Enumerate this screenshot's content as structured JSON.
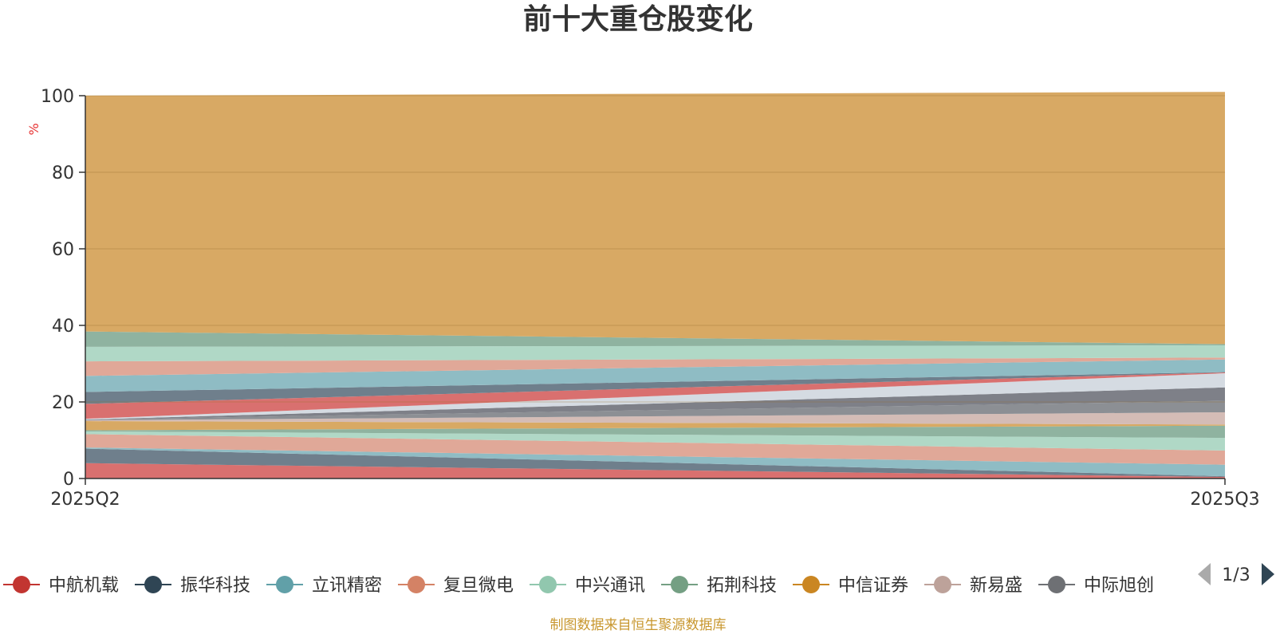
{
  "chart_data": {
    "type": "area",
    "stacked": true,
    "title": "前十大重仓股变化",
    "unit_label": "%",
    "categories": [
      "2025Q2",
      "2025Q3"
    ],
    "ylim": [
      0,
      100
    ],
    "y_ticks": [
      "0",
      "20",
      "40",
      "60",
      "80",
      "100"
    ],
    "grid": true,
    "series": [
      {
        "name": "中航机载",
        "color": "#d9706f",
        "values": [
          4.0,
          0.4
        ]
      },
      {
        "name": "振华科技",
        "color": "#6f7f8c",
        "values": [
          3.8,
          0.2
        ]
      },
      {
        "name": "立讯精密",
        "color": "#8fbcc4",
        "values": [
          0.3,
          3.0
        ]
      },
      {
        "name": "复旦微电",
        "color": "#e0a898",
        "values": [
          3.5,
          3.7
        ]
      },
      {
        "name": "中兴通讯",
        "color": "#b0d8c6",
        "values": [
          0.7,
          3.3
        ]
      },
      {
        "name": "拓荆科技",
        "color": "#8fb3a0",
        "values": [
          0.3,
          3.2
        ]
      },
      {
        "name": "中信证券",
        "color": "#d8a964",
        "values": [
          2.4,
          0.3
        ]
      },
      {
        "name": "新易盛",
        "color": "#d4bcb6",
        "values": [
          0.2,
          3.2
        ]
      },
      {
        "name": "中际旭创",
        "color": "#8c8f94",
        "values": [
          0.2,
          3.0
        ]
      },
      {
        "name": "",
        "color": "#7e8088",
        "values": [
          0.0,
          3.5
        ]
      },
      {
        "name": "",
        "color": "#d5dbe2",
        "values": [
          0.2,
          3.7
        ]
      },
      {
        "name": "",
        "color": "#d9706f",
        "values": [
          3.9,
          0.2
        ]
      },
      {
        "name": "",
        "color": "#6f7f8c",
        "values": [
          3.1,
          0.1
        ]
      },
      {
        "name": "",
        "color": "#8fbcc4",
        "values": [
          4.2,
          3.3
        ]
      },
      {
        "name": "",
        "color": "#e0a898",
        "values": [
          3.8,
          0.5
        ]
      },
      {
        "name": "",
        "color": "#b0d8c6",
        "values": [
          3.8,
          3.2
        ]
      },
      {
        "name": "",
        "color": "#8fb3a0",
        "values": [
          4.0,
          0.3
        ]
      },
      {
        "name": "",
        "color": "#d8a964",
        "values": [
          61.6,
          65.9
        ]
      }
    ],
    "legend": {
      "position": "bottom",
      "items": [
        {
          "name": "中航机载",
          "color": "#c23531"
        },
        {
          "name": "振华科技",
          "color": "#2f4554"
        },
        {
          "name": "立讯精密",
          "color": "#61a0a8"
        },
        {
          "name": "复旦微电",
          "color": "#d48265"
        },
        {
          "name": "中兴通讯",
          "color": "#91c7ae"
        },
        {
          "name": "拓荆科技",
          "color": "#749f83"
        },
        {
          "name": "中信证券",
          "color": "#ca8622"
        },
        {
          "name": "新易盛",
          "color": "#bda29a"
        },
        {
          "name": "中际旭创",
          "color": "#6e7074"
        }
      ],
      "page": "1/3"
    },
    "source": "制图数据来自恒生聚源数据库"
  }
}
